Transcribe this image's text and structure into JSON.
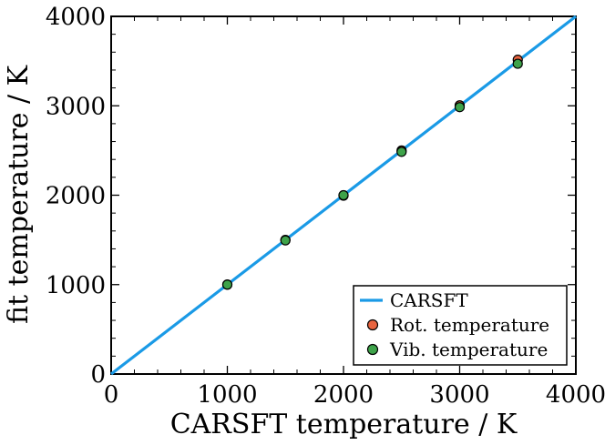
{
  "chart_data": {
    "type": "scatter",
    "xlabel": "CARSFT temperature / K",
    "ylabel": "fit temperature / K",
    "xlim": [
      0,
      4000
    ],
    "ylim": [
      0,
      4000
    ],
    "xticks": [
      0,
      1000,
      2000,
      3000,
      4000
    ],
    "yticks": [
      0,
      1000,
      2000,
      3000,
      4000
    ],
    "grid": false,
    "legend_position": "bottom-right",
    "series": [
      {
        "name": "CARSFT",
        "kind": "line",
        "color": "#1a9ae6",
        "x": [
          0,
          4000
        ],
        "y": [
          0,
          4000
        ]
      },
      {
        "name": "Rot. temperature",
        "kind": "scatter",
        "color": "#e8643f",
        "x": [
          1000,
          1500,
          2000,
          2500,
          3000,
          3500
        ],
        "y": [
          1000,
          1500,
          1995,
          2500,
          3005,
          3515
        ]
      },
      {
        "name": "Vib. temperature",
        "kind": "scatter",
        "color": "#3ea34a",
        "x": [
          1000,
          1500,
          2000,
          2500,
          3000,
          3500
        ],
        "y": [
          1000,
          1495,
          2000,
          2485,
          2985,
          3470
        ]
      }
    ]
  }
}
